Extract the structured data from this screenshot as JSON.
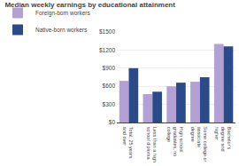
{
  "chart_data": {
    "type": "bar",
    "title": "Median weekly earnings by educational attainment",
    "categories": [
      "Total, 25 years\nand over",
      "Less than a high\nschool diploma",
      "High school\ngraduates, no\ncollege",
      "Some college or\nassociate\ndegree",
      "Bachelor's\ndegree and\nhigher"
    ],
    "series": [
      {
        "name": "Foreign-born workers",
        "color": "#b3a0d4",
        "values": [
          690,
          470,
          600,
          675,
          1300
        ]
      },
      {
        "name": "Native-born workers",
        "color": "#2a4a8a",
        "values": [
          900,
          510,
          660,
          750,
          1260
        ]
      }
    ],
    "ylim": [
      0,
      1500
    ],
    "yticks": [
      {
        "value": 0,
        "label": "$0"
      },
      {
        "value": 300,
        "label": "$300"
      },
      {
        "value": 600,
        "label": "$600"
      },
      {
        "value": 900,
        "label": "$900"
      },
      {
        "value": 1200,
        "label": "$1200"
      },
      {
        "value": 1500,
        "label": "$1500"
      }
    ],
    "grid": true,
    "legend": "upper left"
  }
}
